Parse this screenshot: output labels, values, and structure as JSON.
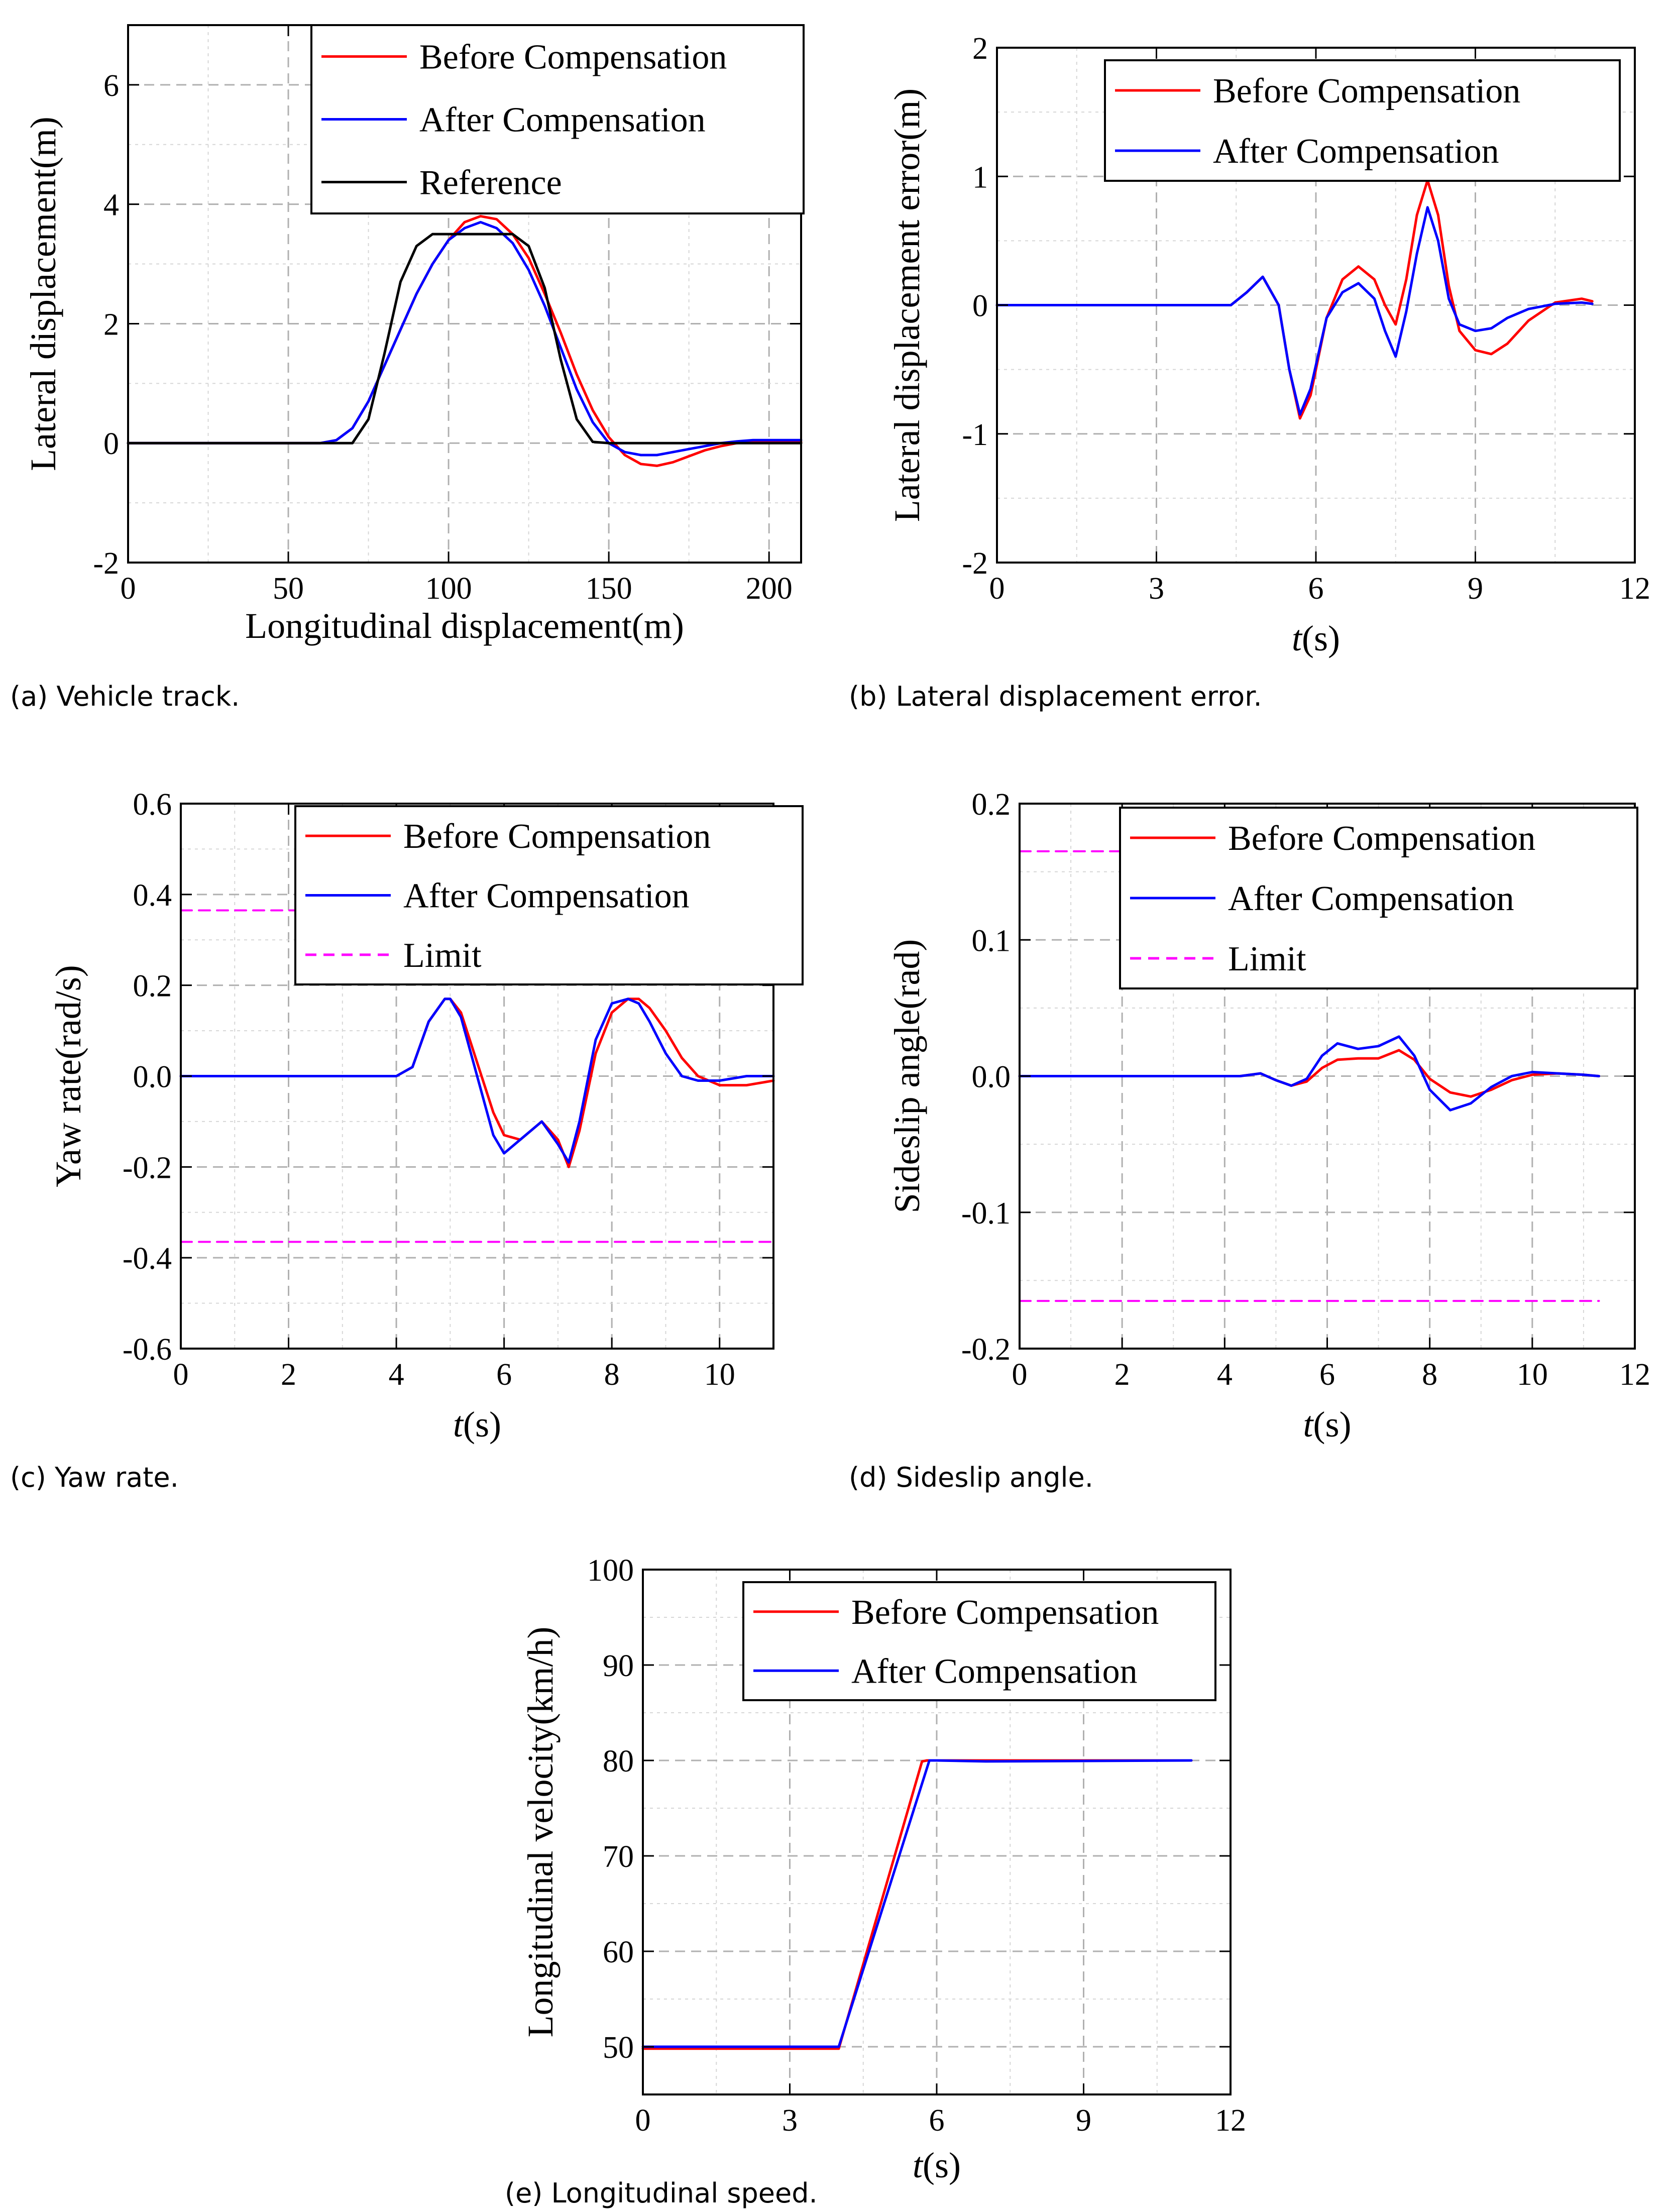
{
  "colors": {
    "before": "#ff0000",
    "after": "#0000ff",
    "reference": "#000000",
    "limit": "#ff00ff",
    "grid": "#c0c0c0"
  },
  "chart_data": [
    {
      "id": "a",
      "type": "line",
      "caption": "(a) Vehicle track.",
      "xlabel": "Longitudinal displacement(m)",
      "ylabel": "Lateral displacement(m)",
      "xlim": [
        0,
        210
      ],
      "ylim": [
        -2,
        7
      ],
      "xticks": [
        0,
        50,
        100,
        150,
        200
      ],
      "yticks": [
        -2,
        0,
        2,
        4,
        6
      ],
      "xtick_labels": [
        "0",
        "50",
        "100",
        "150",
        "200"
      ],
      "ytick_labels": [
        "-2",
        "0",
        "2",
        "4",
        "6"
      ],
      "grid": true,
      "legend": [
        "Before Compensation",
        "After Compensation",
        "Reference"
      ],
      "series": [
        {
          "name": "Before Compensation",
          "color": "before",
          "x": [
            0,
            60,
            65,
            70,
            75,
            80,
            85,
            90,
            95,
            100,
            105,
            110,
            115,
            120,
            125,
            130,
            135,
            140,
            145,
            150,
            155,
            160,
            165,
            170,
            175,
            180,
            185,
            190,
            195,
            200,
            210
          ],
          "y": [
            0,
            0,
            0.05,
            0.25,
            0.7,
            1.3,
            1.9,
            2.5,
            3.0,
            3.4,
            3.7,
            3.8,
            3.75,
            3.5,
            3.1,
            2.5,
            1.85,
            1.15,
            0.55,
            0.1,
            -0.2,
            -0.35,
            -0.38,
            -0.32,
            -0.22,
            -0.12,
            -0.05,
            0,
            0.02,
            0.03,
            0.02
          ]
        },
        {
          "name": "After Compensation",
          "color": "after",
          "x": [
            0,
            60,
            65,
            70,
            75,
            80,
            85,
            90,
            95,
            100,
            105,
            110,
            115,
            120,
            125,
            130,
            135,
            140,
            145,
            150,
            155,
            160,
            165,
            170,
            175,
            180,
            185,
            190,
            195,
            200,
            210
          ],
          "y": [
            0,
            0,
            0.05,
            0.25,
            0.7,
            1.3,
            1.9,
            2.5,
            3.0,
            3.4,
            3.6,
            3.7,
            3.6,
            3.35,
            2.9,
            2.3,
            1.6,
            0.9,
            0.35,
            0.0,
            -0.15,
            -0.2,
            -0.2,
            -0.15,
            -0.1,
            -0.05,
            0,
            0.03,
            0.05,
            0.05,
            0.05
          ]
        },
        {
          "name": "Reference",
          "color": "reference",
          "x": [
            0,
            70,
            75,
            80,
            85,
            90,
            95,
            100,
            105,
            110,
            115,
            120,
            125,
            130,
            135,
            140,
            145,
            150,
            210
          ],
          "y": [
            0,
            0,
            0.4,
            1.5,
            2.7,
            3.3,
            3.5,
            3.5,
            3.5,
            3.5,
            3.5,
            3.5,
            3.3,
            2.6,
            1.4,
            0.4,
            0.02,
            0,
            0
          ]
        }
      ]
    },
    {
      "id": "b",
      "type": "line",
      "caption": "(b) Lateral displacement error.",
      "xlabel_italic": "t",
      "xlabel": "(s)",
      "ylabel": "Lateral displacement error(m)",
      "xlim": [
        0,
        12
      ],
      "ylim": [
        -2,
        2
      ],
      "xticks": [
        0,
        3,
        6,
        9,
        12
      ],
      "yticks": [
        -2,
        -1,
        0,
        1,
        2
      ],
      "xtick_labels": [
        "0",
        "3",
        "6",
        "9",
        "12"
      ],
      "ytick_labels": [
        "-2",
        "-1",
        "0",
        "1",
        "2"
      ],
      "grid": true,
      "legend": [
        "Before Compensation",
        "After Compensation"
      ],
      "series": [
        {
          "name": "Before Compensation",
          "color": "before",
          "x": [
            0,
            4.4,
            4.7,
            5.0,
            5.3,
            5.5,
            5.7,
            5.9,
            6.2,
            6.5,
            6.8,
            7.1,
            7.3,
            7.5,
            7.7,
            7.9,
            8.1,
            8.3,
            8.5,
            8.7,
            9.0,
            9.3,
            9.6,
            10.0,
            10.5,
            11.0,
            11.2
          ],
          "y": [
            0,
            0,
            0.1,
            0.22,
            0.0,
            -0.5,
            -0.88,
            -0.7,
            -0.1,
            0.2,
            0.3,
            0.2,
            0.0,
            -0.15,
            0.2,
            0.7,
            0.97,
            0.7,
            0.15,
            -0.2,
            -0.35,
            -0.38,
            -0.3,
            -0.12,
            0.02,
            0.05,
            0.03
          ]
        },
        {
          "name": "After Compensation",
          "color": "after",
          "x": [
            0,
            4.4,
            4.7,
            5.0,
            5.3,
            5.5,
            5.7,
            5.9,
            6.2,
            6.5,
            6.8,
            7.1,
            7.3,
            7.5,
            7.7,
            7.9,
            8.1,
            8.3,
            8.5,
            8.7,
            9.0,
            9.3,
            9.6,
            10.0,
            10.5,
            11.0,
            11.2
          ],
          "y": [
            0,
            0,
            0.1,
            0.22,
            0.0,
            -0.5,
            -0.85,
            -0.65,
            -0.1,
            0.1,
            0.17,
            0.05,
            -0.2,
            -0.4,
            -0.05,
            0.4,
            0.76,
            0.5,
            0.05,
            -0.15,
            -0.2,
            -0.18,
            -0.1,
            -0.03,
            0.01,
            0.02,
            0.01
          ]
        }
      ]
    },
    {
      "id": "c",
      "type": "line",
      "caption": "(c) Yaw rate.",
      "xlabel_italic": "t",
      "xlabel": "(s)",
      "ylabel": "Yaw rate(rad/s)",
      "xlim": [
        0,
        11
      ],
      "ylim": [
        -0.6,
        0.6
      ],
      "xticks": [
        0,
        2,
        4,
        6,
        8,
        10
      ],
      "yticks": [
        -0.6,
        -0.4,
        -0.2,
        0.0,
        0.2,
        0.4,
        0.6
      ],
      "xtick_labels": [
        "0",
        "2",
        "4",
        "6",
        "8",
        "10"
      ],
      "ytick_labels": [
        "-0.6",
        "-0.4",
        "-0.2",
        "0.0",
        "0.2",
        "0.4",
        "0.6"
      ],
      "grid": true,
      "legend": [
        "Before Compensation",
        "After Compensation",
        "Limit"
      ],
      "series": [
        {
          "name": "Before Compensation",
          "color": "before",
          "x": [
            0,
            4.0,
            4.3,
            4.6,
            4.9,
            5.0,
            5.2,
            5.5,
            5.8,
            6.0,
            6.3,
            6.7,
            7.0,
            7.2,
            7.4,
            7.7,
            8.0,
            8.3,
            8.5,
            8.7,
            9.0,
            9.3,
            9.6,
            10.0,
            10.5,
            11.0
          ],
          "y": [
            0,
            0,
            0.02,
            0.12,
            0.17,
            0.17,
            0.14,
            0.03,
            -0.08,
            -0.13,
            -0.14,
            -0.1,
            -0.14,
            -0.2,
            -0.12,
            0.05,
            0.14,
            0.17,
            0.17,
            0.15,
            0.1,
            0.04,
            0.0,
            -0.02,
            -0.02,
            -0.01
          ]
        },
        {
          "name": "After Compensation",
          "color": "after",
          "x": [
            0,
            4.0,
            4.3,
            4.6,
            4.9,
            5.0,
            5.2,
            5.5,
            5.8,
            6.0,
            6.3,
            6.7,
            7.0,
            7.2,
            7.4,
            7.7,
            8.0,
            8.3,
            8.5,
            8.7,
            9.0,
            9.3,
            9.6,
            10.0,
            10.5,
            11.0
          ],
          "y": [
            0,
            0,
            0.02,
            0.12,
            0.17,
            0.17,
            0.13,
            0.0,
            -0.13,
            -0.17,
            -0.14,
            -0.1,
            -0.15,
            -0.19,
            -0.1,
            0.08,
            0.16,
            0.17,
            0.16,
            0.12,
            0.05,
            0.0,
            -0.01,
            -0.01,
            0.0,
            0.0
          ]
        },
        {
          "name": "Limit",
          "color": "limit",
          "dashed": true,
          "x": [
            0,
            11
          ],
          "y": [
            0.365,
            0.365
          ]
        },
        {
          "name": "Limit",
          "color": "limit",
          "dashed": true,
          "x": [
            0,
            11
          ],
          "y": [
            -0.365,
            -0.365
          ]
        }
      ]
    },
    {
      "id": "d",
      "type": "line",
      "caption": "(d) Sideslip angle.",
      "xlabel_italic": "t",
      "xlabel": "(s)",
      "ylabel": "Sideslip angle(rad)",
      "xlim": [
        0,
        12
      ],
      "ylim": [
        -0.2,
        0.2
      ],
      "xticks": [
        0,
        2,
        4,
        6,
        8,
        10,
        12
      ],
      "yticks": [
        -0.2,
        -0.1,
        0.0,
        0.1,
        0.2
      ],
      "xtick_labels": [
        "0",
        "2",
        "4",
        "6",
        "8",
        "10",
        "12"
      ],
      "ytick_labels": [
        "-0.2",
        "-0.1",
        "0.0",
        "0.1",
        "0.2"
      ],
      "grid": true,
      "legend": [
        "Before Compensation",
        "After Compensation",
        "Limit"
      ],
      "series": [
        {
          "name": "Before Compensation",
          "color": "before",
          "x": [
            0,
            4.3,
            4.7,
            5.0,
            5.3,
            5.6,
            5.9,
            6.2,
            6.6,
            7.0,
            7.4,
            7.7,
            8.0,
            8.4,
            8.8,
            9.2,
            9.6,
            10.0,
            10.5,
            11.0,
            11.3
          ],
          "y": [
            0,
            0,
            0.002,
            -0.003,
            -0.007,
            -0.004,
            0.006,
            0.012,
            0.013,
            0.013,
            0.019,
            0.012,
            -0.002,
            -0.012,
            -0.015,
            -0.01,
            -0.003,
            0.001,
            0.002,
            0.001,
            0
          ]
        },
        {
          "name": "After Compensation",
          "color": "after",
          "x": [
            0,
            4.3,
            4.7,
            5.0,
            5.3,
            5.6,
            5.9,
            6.2,
            6.6,
            7.0,
            7.4,
            7.7,
            8.0,
            8.4,
            8.8,
            9.2,
            9.6,
            10.0,
            10.5,
            11.0,
            11.3
          ],
          "y": [
            0,
            0,
            0.002,
            -0.003,
            -0.007,
            -0.002,
            0.015,
            0.024,
            0.02,
            0.022,
            0.029,
            0.015,
            -0.01,
            -0.025,
            -0.02,
            -0.008,
            0.0,
            0.003,
            0.002,
            0.001,
            0
          ]
        },
        {
          "name": "Limit",
          "color": "limit",
          "dashed": true,
          "x": [
            0,
            11.3
          ],
          "y": [
            0.165,
            0.165
          ]
        },
        {
          "name": "Limit",
          "color": "limit",
          "dashed": true,
          "x": [
            0,
            11.3
          ],
          "y": [
            -0.165,
            -0.165
          ]
        }
      ]
    },
    {
      "id": "e",
      "type": "line",
      "caption": "(e) Longitudinal speed.",
      "xlabel_italic": "t",
      "xlabel": "(s)",
      "ylabel": "Longitudinal velocity(km/h)",
      "xlim": [
        0,
        12
      ],
      "ylim": [
        45,
        100
      ],
      "xticks": [
        0,
        3,
        6,
        9,
        12
      ],
      "yticks": [
        50,
        60,
        70,
        80,
        90,
        100
      ],
      "xtick_labels": [
        "0",
        "3",
        "6",
        "9",
        "12"
      ],
      "ytick_labels": [
        "50",
        "60",
        "70",
        "80",
        "90",
        "100"
      ],
      "grid": true,
      "legend": [
        "Before Compensation",
        "After Compensation"
      ],
      "series": [
        {
          "name": "Before Compensation",
          "color": "before",
          "x": [
            0,
            4.0,
            5.7,
            5.8,
            7.0,
            11.2
          ],
          "y": [
            49.8,
            49.8,
            79.9,
            80.0,
            80.0,
            80.0
          ]
        },
        {
          "name": "After Compensation",
          "color": "after",
          "x": [
            0,
            4.0,
            5.85,
            6.0,
            7.0,
            11.2
          ],
          "y": [
            50.0,
            50.0,
            80.0,
            80.0,
            79.9,
            80.0
          ]
        }
      ]
    }
  ]
}
